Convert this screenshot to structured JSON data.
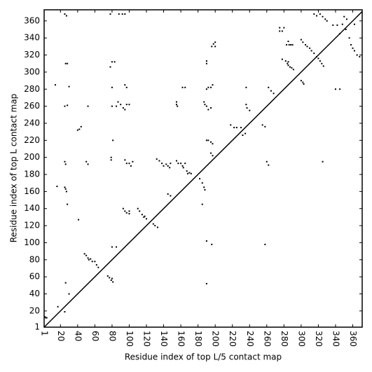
{
  "chart_data": {
    "type": "scatter",
    "xlabel": "Residue index of top L/5 contact map",
    "ylabel": "Residue index of top L contact map",
    "color": "#000000",
    "xlim": [
      1,
      371
    ],
    "ylim": [
      1,
      373
    ],
    "xticks": [
      1,
      20,
      40,
      60,
      80,
      100,
      120,
      140,
      160,
      180,
      200,
      220,
      240,
      260,
      280,
      300,
      320,
      340,
      360
    ],
    "yticks": [
      1,
      20,
      40,
      60,
      80,
      100,
      120,
      140,
      160,
      180,
      200,
      220,
      240,
      260,
      280,
      300,
      320,
      340,
      360
    ],
    "x": [
      2,
      3,
      4,
      25,
      17,
      26,
      30,
      16,
      25,
      26,
      27,
      28,
      25,
      26,
      41,
      25,
      28,
      30,
      26,
      28,
      25,
      27,
      14,
      40,
      42,
      44,
      50,
      52,
      52,
      48,
      50,
      52,
      53,
      55,
      57,
      60,
      62,
      64,
      75,
      77,
      79,
      81,
      80,
      80,
      85,
      79,
      79,
      81,
      80,
      85,
      87,
      90,
      93,
      95,
      97,
      100,
      78,
      80,
      83,
      80,
      78,
      88,
      92,
      95,
      93,
      95,
      97,
      100,
      100,
      95,
      97,
      100,
      102,
      104,
      95,
      97,
      110,
      112,
      115,
      117,
      120,
      118,
      128,
      130,
      133,
      132,
      135,
      138,
      140,
      143,
      145,
      147,
      148,
      145,
      148,
      155,
      157,
      160,
      162,
      165,
      163,
      167,
      168,
      170,
      172,
      155,
      155,
      156,
      162,
      165,
      182,
      185,
      187,
      188,
      185,
      187,
      188,
      190,
      192,
      190,
      192,
      195,
      190,
      190,
      190,
      192,
      195,
      197,
      195,
      197,
      190,
      196,
      190,
      195,
      197,
      196,
      198,
      200,
      200,
      218,
      222,
      225,
      230,
      232,
      235,
      236,
      237,
      240,
      236,
      255,
      258,
      258,
      260,
      262,
      262,
      265,
      268,
      275,
      275,
      278,
      280,
      278,
      282,
      284,
      285,
      287,
      289,
      291,
      285,
      283,
      286,
      288,
      290,
      285,
      300,
      302,
      305,
      307,
      310,
      312,
      315,
      300,
      302,
      303,
      315,
      318,
      322,
      325,
      328,
      330,
      318,
      320,
      322,
      324,
      326,
      325,
      337,
      342,
      348,
      340,
      345,
      350,
      353,
      352,
      358,
      360,
      362,
      365,
      368,
      345,
      356,
      362
    ],
    "values": [
      13,
      12,
      12,
      19,
      25,
      53,
      40,
      166,
      165,
      163,
      160,
      145,
      195,
      192,
      127,
      260,
      261,
      283,
      310,
      310,
      368,
      366,
      285,
      232,
      233,
      236,
      195,
      192,
      260,
      87,
      85,
      82,
      80,
      81,
      78,
      78,
      74,
      71,
      61,
      59,
      56,
      54,
      58,
      95,
      95,
      197,
      200,
      220,
      260,
      260,
      265,
      262,
      258,
      256,
      262,
      262,
      306,
      312,
      312,
      282,
      368,
      368,
      368,
      368,
      140,
      137,
      135,
      137,
      134,
      197,
      193,
      193,
      190,
      195,
      285,
      282,
      140,
      137,
      133,
      130,
      128,
      131,
      122,
      120,
      118,
      198,
      196,
      193,
      190,
      192,
      190,
      188,
      193,
      157,
      155,
      196,
      193,
      193,
      190,
      193,
      188,
      184,
      181,
      182,
      181,
      262,
      265,
      260,
      282,
      282,
      175,
      170,
      165,
      162,
      145,
      265,
      262,
      280,
      282,
      260,
      256,
      258,
      310,
      313,
      220,
      220,
      218,
      216,
      205,
      202,
      102,
      98,
      52,
      282,
      285,
      330,
      333,
      330,
      335,
      238,
      235,
      235,
      235,
      226,
      228,
      262,
      258,
      255,
      282,
      238,
      236,
      98,
      195,
      191,
      282,
      278,
      275,
      348,
      352,
      348,
      352,
      315,
      313,
      310,
      308,
      306,
      305,
      303,
      312,
      332,
      332,
      332,
      332,
      336,
      338,
      335,
      332,
      330,
      328,
      325,
      322,
      290,
      288,
      286,
      368,
      366,
      368,
      365,
      362,
      360,
      318,
      316,
      313,
      310,
      307,
      195,
      355,
      355,
      356,
      280,
      280,
      365,
      362,
      350,
      332,
      328,
      325,
      320,
      318,
      345,
      340,
      356
    ]
  }
}
